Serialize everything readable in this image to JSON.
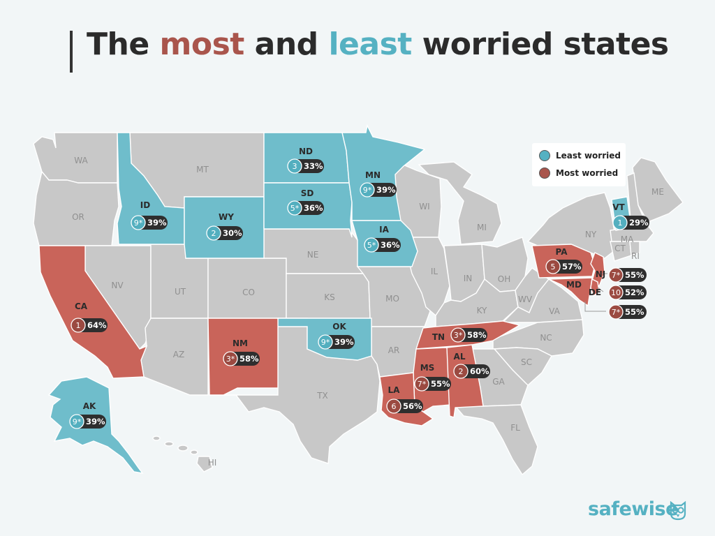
{
  "title": {
    "part1": "The ",
    "most": "most",
    "part2": " and ",
    "least": "least",
    "part3": " worried states"
  },
  "legend": {
    "least_label": "Least worried",
    "most_label": "Most worried",
    "least_color": "#55b1c2",
    "most_color": "#a9554c"
  },
  "colors": {
    "neutral": "#c8c8c8",
    "least": "#6fbdcb",
    "most": "#c9645a",
    "badge_bg": "#2e2e2e"
  },
  "labels": {
    "WA": "WA",
    "OR": "OR",
    "MT": "MT",
    "NV": "NV",
    "UT": "UT",
    "CO": "CO",
    "AZ": "AZ",
    "NE": "NE",
    "KS": "KS",
    "TX": "TX",
    "MO": "MO",
    "AR": "AR",
    "WI": "WI",
    "MI": "MI",
    "IL": "IL",
    "IN": "IN",
    "OH": "OH",
    "KY": "KY",
    "WV": "WV",
    "VA": "VA",
    "NC": "NC",
    "SC": "SC",
    "GA": "GA",
    "FL": "FL",
    "NY": "NY",
    "ME": "ME",
    "MA": "MA",
    "CT": "CT",
    "RI": "RI",
    "HI": "HI"
  },
  "highlighted": {
    "ID": {
      "abbr": "ID",
      "rank": "9*",
      "pct": "39%"
    },
    "ND": {
      "abbr": "ND",
      "rank": "3",
      "pct": "33%"
    },
    "SD": {
      "abbr": "SD",
      "rank": "5*",
      "pct": "36%"
    },
    "WY": {
      "abbr": "WY",
      "rank": "2",
      "pct": "30%"
    },
    "MN": {
      "abbr": "MN",
      "rank": "9*",
      "pct": "39%"
    },
    "IA": {
      "abbr": "IA",
      "rank": "5*",
      "pct": "36%"
    },
    "OK": {
      "abbr": "OK",
      "rank": "9*",
      "pct": "39%"
    },
    "AK": {
      "abbr": "AK",
      "rank": "9*",
      "pct": "39%"
    },
    "VT": {
      "abbr": "VT",
      "rank": "1",
      "pct": "29%"
    },
    "CA": {
      "abbr": "CA",
      "rank": "1",
      "pct": "64%"
    },
    "NM": {
      "abbr": "NM",
      "rank": "3*",
      "pct": "58%"
    },
    "TN": {
      "abbr": "TN",
      "rank": "3*",
      "pct": "58%"
    },
    "AL": {
      "abbr": "AL",
      "rank": "2",
      "pct": "60%"
    },
    "MS": {
      "abbr": "MS",
      "rank": "7*",
      "pct": "55%"
    },
    "LA": {
      "abbr": "LA",
      "rank": "6",
      "pct": "56%"
    },
    "PA": {
      "abbr": "PA",
      "rank": "5",
      "pct": "57%"
    },
    "NJ": {
      "abbr": "NJ",
      "rank": "7*",
      "pct": "55%"
    },
    "DE": {
      "abbr": "DE",
      "rank": "10",
      "pct": "52%"
    },
    "MD": {
      "abbr": "MD",
      "rank": "7*",
      "pct": "55%"
    }
  },
  "brand": {
    "name": "safewise"
  }
}
